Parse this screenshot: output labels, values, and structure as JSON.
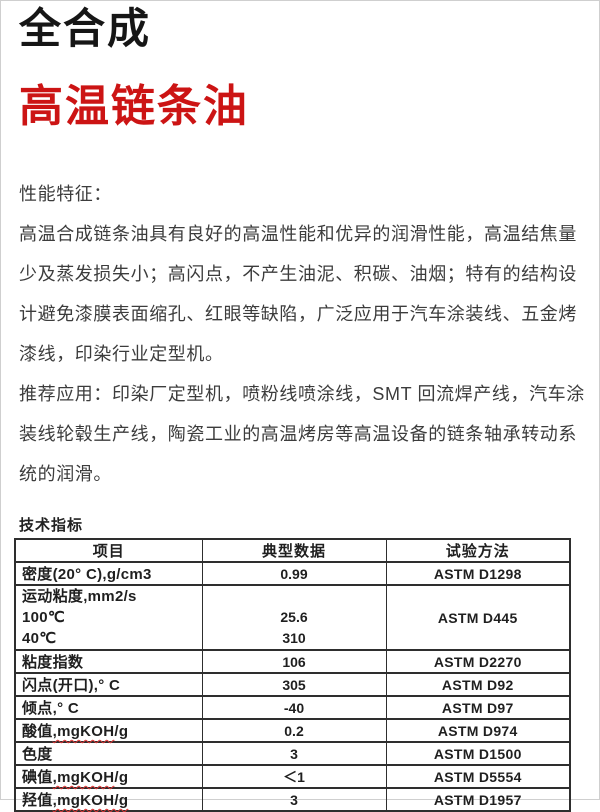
{
  "page": {
    "title_black": "全合成",
    "title_red": "高温链条油",
    "accent_color": "#cc1414",
    "spellcheck_underline_color": "#e03434",
    "table_border_color": "#2e2e2e"
  },
  "sections": {
    "performance_heading": "性能特征：",
    "performance_lines": [
      "高温合成链条油具有良好的高温性能和优异的润滑性能，高温结焦量",
      "少及蒸发损失小；高闪点，不产生油泥、积碳、油烟；特有的结构设",
      "计避免漆膜表面缩孔、红眼等缺陷，广泛应用于汽车涂装线、五金烤",
      "漆线，印染行业定型机。"
    ],
    "application_lines": [
      "推荐应用：印染厂定型机，喷粉线喷涂线，SMT 回流焊产线，汽车涂",
      "装线轮毂生产线，陶瓷工业的高温烤房等高温设备的链条轴承转动系",
      "统的润滑。"
    ],
    "specs_heading": "技术指标"
  },
  "table": {
    "headers": [
      "项目",
      "典型数据",
      "试验方法"
    ],
    "rows": [
      {
        "item": "密度(20° C),g/cm3",
        "value": "0.99",
        "method": "ASTM D1298"
      },
      {
        "item_lines": [
          "运动粘度,mm2/s",
          "100℃",
          "40℃"
        ],
        "value_lines": [
          "",
          "25.6",
          "310"
        ],
        "method": "ASTM D445"
      },
      {
        "item": "粘度指数",
        "value": "106",
        "method": "ASTM D2270"
      },
      {
        "item": "闪点(开口),° C",
        "value": "305",
        "method": "ASTM D92"
      },
      {
        "item": "倾点,° C",
        "value": "-40",
        "method": "ASTM D97"
      },
      {
        "item_pre": "酸值",
        "item_wavy": ",mgKOH",
        "item_post": "/g",
        "value": "0.2",
        "method": "ASTM D974"
      },
      {
        "item": "色度",
        "value": "3",
        "method": "ASTM D1500"
      },
      {
        "item_pre": "碘值",
        "item_wavy": ",mgKOH",
        "item_post": "/g",
        "value": "＜1",
        "method": "ASTM D5554"
      },
      {
        "item_pre": "羟值",
        "item_wavy": ",mgKOH/g",
        "item_post": "",
        "value": "3",
        "method": "ASTM D1957"
      }
    ]
  }
}
